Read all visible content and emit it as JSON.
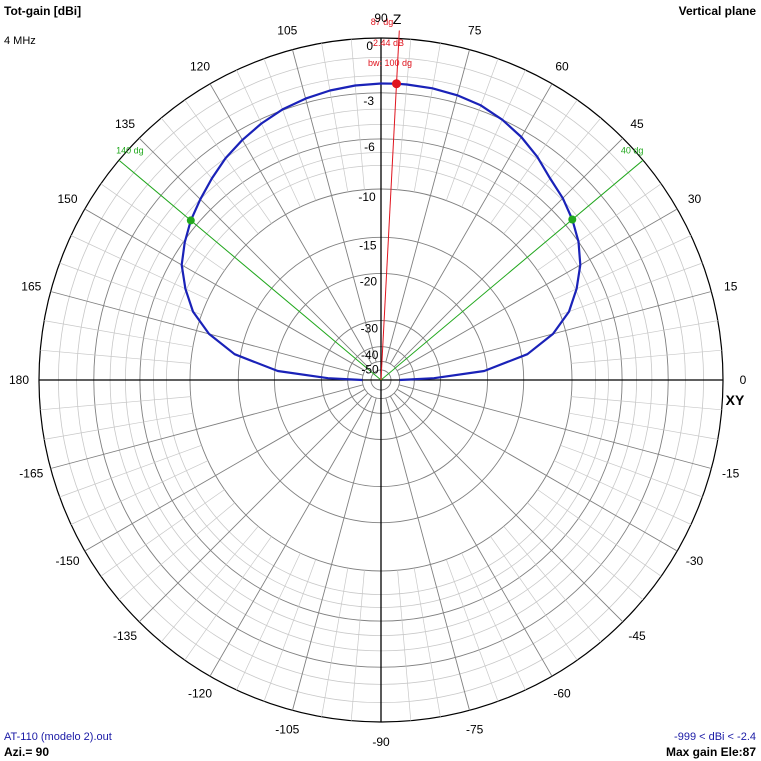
{
  "header": {
    "left_title": "Tot-gain [dBi]",
    "left_sub": "4 MHz",
    "right_title": "Vertical plane"
  },
  "footer": {
    "left_file": "AT-110 (modelo 2).out",
    "left_azimuth": "Azi.= 90",
    "right_range": "-999 < dBi < -2.4",
    "right_maxgain": "Max gain Ele:87"
  },
  "axes": {
    "z_label": "Z",
    "xy_label": "XY"
  },
  "colors": {
    "pattern": "#1a22b8",
    "max_marker": "#e0141e",
    "beamwidth": "#22a81e",
    "grid": "#808080",
    "axis": "#000000"
  },
  "chart_data": {
    "type": "polar",
    "title": "",
    "radial_unit": "dBi",
    "radial_ticks": [
      0,
      -3,
      -6,
      -10,
      -15,
      -20,
      -30,
      -40,
      -50
    ],
    "angle_ticks": [
      {
        "deg": 0,
        "label": "0"
      },
      {
        "deg": 15,
        "label": "15"
      },
      {
        "deg": 30,
        "label": "30"
      },
      {
        "deg": 45,
        "label": "45"
      },
      {
        "deg": 60,
        "label": "60"
      },
      {
        "deg": 75,
        "label": "75"
      },
      {
        "deg": 90,
        "label": "90"
      },
      {
        "deg": 105,
        "label": "105"
      },
      {
        "deg": 120,
        "label": "120"
      },
      {
        "deg": 135,
        "label": "135"
      },
      {
        "deg": 150,
        "label": "150"
      },
      {
        "deg": 165,
        "label": "165"
      },
      {
        "deg": 180,
        "label": "180"
      },
      {
        "deg": -165,
        "label": "-165"
      },
      {
        "deg": -150,
        "label": "-150"
      },
      {
        "deg": -135,
        "label": "-135"
      },
      {
        "deg": -120,
        "label": "-120"
      },
      {
        "deg": -105,
        "label": "-105"
      },
      {
        "deg": -90,
        "label": "-90"
      },
      {
        "deg": -75,
        "label": "-75"
      },
      {
        "deg": -60,
        "label": "-60"
      },
      {
        "deg": -45,
        "label": "-45"
      },
      {
        "deg": -30,
        "label": "-30"
      },
      {
        "deg": -15,
        "label": "-15"
      }
    ],
    "series": [
      {
        "angle_deg": [
          0,
          2,
          5,
          10,
          15,
          20,
          25,
          30,
          35,
          40,
          45,
          50,
          55,
          60,
          65,
          70,
          75,
          80,
          85,
          87,
          90,
          95,
          100,
          105,
          110,
          115,
          120,
          125,
          130,
          135,
          140,
          145,
          150,
          155,
          160,
          165,
          170,
          175,
          178,
          180
        ],
        "gain_dbi": [
          -50,
          -32,
          -20.5,
          -14.3,
          -11.2,
          -9.2,
          -7.9,
          -6.8,
          -6.0,
          -5.4,
          -4.9,
          -4.5,
          -3.9,
          -3.4,
          -3.0,
          -2.7,
          -2.55,
          -2.47,
          -2.44,
          -2.44,
          -2.45,
          -2.5,
          -2.6,
          -2.75,
          -2.95,
          -3.25,
          -3.6,
          -4.0,
          -4.5,
          -5.0,
          -5.5,
          -6.1,
          -6.8,
          -7.9,
          -9.2,
          -11.2,
          -14.3,
          -20.5,
          -32,
          -50
        ]
      }
    ],
    "max_marker": {
      "angle_deg": 87,
      "gain_dbi": -2.44,
      "angle_label": "87 dg",
      "gain_label": "-2.44 dB",
      "bw_label": "bw: 100 dg"
    },
    "beamwidth_markers": [
      {
        "angle_deg": 40,
        "label": "40 dg"
      },
      {
        "angle_deg": 140,
        "label": "140 dg"
      }
    ]
  }
}
